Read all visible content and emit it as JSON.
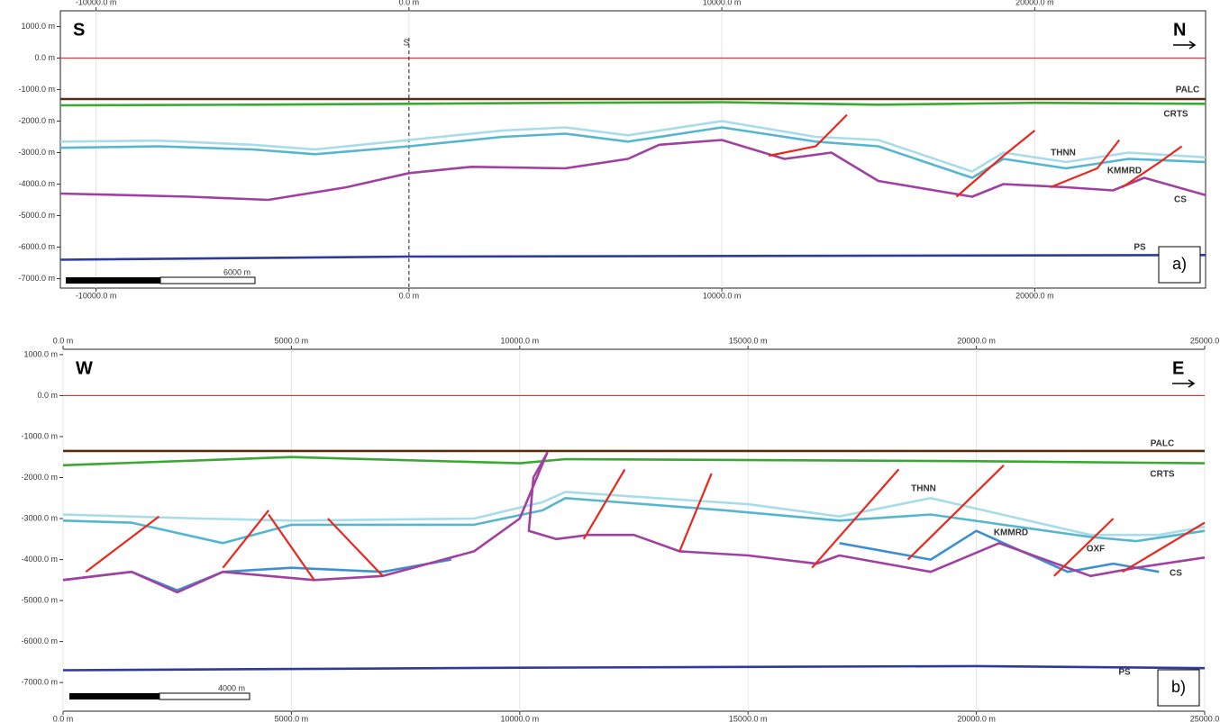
{
  "chart_data": [
    {
      "type": "line",
      "left_label": "S",
      "right_label": "N",
      "panel_label": "a)",
      "marker_label": "S",
      "scale_label": "6000 m",
      "grid": true,
      "fault_color": "#e8281e",
      "xlim": [
        -11140,
        25460
      ],
      "ylim": [
        -7300,
        1500
      ],
      "xticks": [
        {
          "value": -10000,
          "label": "-10000.0 m"
        },
        {
          "value": 0,
          "label": "0.0 m"
        },
        {
          "value": 10000,
          "label": "10000.0 m"
        },
        {
          "value": 20000,
          "label": "20000.0 m"
        }
      ],
      "yticks": [
        {
          "value": 1000,
          "label": "1000.0 m"
        },
        {
          "value": 0,
          "label": "0.0 m"
        },
        {
          "value": -1000,
          "label": "-1000.0 m"
        },
        {
          "value": -2000,
          "label": "-2000.0 m"
        },
        {
          "value": -3000,
          "label": "-3000.0 m"
        },
        {
          "value": -4000,
          "label": "-4000.0 m"
        },
        {
          "value": -5000,
          "label": "-5000.0 m"
        },
        {
          "value": -6000,
          "label": "-6000.0 m"
        },
        {
          "value": -7000,
          "label": "-7000.0 m"
        }
      ],
      "series": [
        {
          "name": "PALC",
          "color": "#5a2d0c",
          "x": [
            -11140,
            25460
          ],
          "y": [
            -1300,
            -1300
          ]
        },
        {
          "name": "CRTS",
          "color": "#3aa832",
          "x": [
            -11140,
            -5000,
            0,
            5000,
            10000,
            15000,
            20000,
            25460
          ],
          "y": [
            -1500,
            -1480,
            -1450,
            -1420,
            -1400,
            -1480,
            -1420,
            -1450
          ]
        },
        {
          "name": "THNN",
          "color": "#a8dce8",
          "x": [
            -11140,
            -8000,
            -5000,
            -3000,
            0,
            3000,
            5000,
            7000,
            10000,
            13000,
            15000,
            18000,
            19000,
            21000,
            23000,
            25460
          ],
          "y": [
            -2650,
            -2620,
            -2750,
            -2900,
            -2600,
            -2300,
            -2200,
            -2450,
            -2000,
            -2500,
            -2600,
            -3600,
            -3000,
            -3300,
            -3000,
            -3150
          ]
        },
        {
          "name": "KMMRD",
          "color": "#55b6d0",
          "x": [
            -11140,
            -8000,
            -5000,
            -3000,
            0,
            3000,
            5000,
            7000,
            10000,
            13000,
            15000,
            18000,
            19000,
            21000,
            23000,
            25460
          ],
          "y": [
            -2850,
            -2800,
            -2900,
            -3050,
            -2800,
            -2500,
            -2400,
            -2650,
            -2200,
            -2650,
            -2800,
            -3800,
            -3200,
            -3500,
            -3200,
            -3300
          ]
        },
        {
          "name": "CS",
          "color": "#a040a0",
          "x": [
            -11140,
            -7000,
            -4500,
            -2000,
            0,
            2000,
            5000,
            7000,
            8000,
            10000,
            12000,
            13500,
            15000,
            18000,
            19000,
            21000,
            22500,
            23500,
            25460
          ],
          "y": [
            -4300,
            -4400,
            -4500,
            -4100,
            -3650,
            -3450,
            -3500,
            -3200,
            -2750,
            -2600,
            -3200,
            -3000,
            -3900,
            -4400,
            -4000,
            -4100,
            -4200,
            -3800,
            -4350
          ]
        },
        {
          "name": "PS",
          "color": "#2e3a9e",
          "x": [
            -11140,
            0,
            25460
          ],
          "y": [
            -6400,
            -6300,
            -6250
          ]
        }
      ],
      "faults": [
        {
          "x": [
            11500,
            13000,
            14000
          ],
          "y": [
            -3100,
            -2800,
            -1800
          ]
        },
        {
          "x": [
            17500,
            19000,
            20000
          ],
          "y": [
            -4400,
            -3100,
            -2300
          ]
        },
        {
          "x": [
            20500,
            22000,
            22700
          ],
          "y": [
            -4100,
            -3500,
            -2600
          ]
        },
        {
          "x": [
            22800,
            24000,
            24700
          ],
          "y": [
            -4100,
            -3300,
            -2800
          ]
        }
      ]
    },
    {
      "type": "line",
      "left_label": "W",
      "right_label": "E",
      "panel_label": "b)",
      "scale_label": "4000 m",
      "grid": true,
      "fault_color": "#e8281e",
      "xlim": [
        0,
        25000
      ],
      "ylim": [
        -7700,
        1130
      ],
      "xticks": [
        {
          "value": 0,
          "label": "0.0 m"
        },
        {
          "value": 5000,
          "label": "5000.0 m"
        },
        {
          "value": 10000,
          "label": "10000.0 m"
        },
        {
          "value": 15000,
          "label": "15000.0 m"
        },
        {
          "value": 20000,
          "label": "20000.0 m"
        },
        {
          "value": 25000,
          "label": "25000.0"
        }
      ],
      "yticks": [
        {
          "value": 1000,
          "label": "1000.0 m"
        },
        {
          "value": 0,
          "label": "0.0 m"
        },
        {
          "value": -1000,
          "label": "-1000.0 m"
        },
        {
          "value": -2000,
          "label": "-2000.0 m"
        },
        {
          "value": -3000,
          "label": "-3000.0 m"
        },
        {
          "value": -4000,
          "label": "-4000.0 m"
        },
        {
          "value": -5000,
          "label": "-5000.0 m"
        },
        {
          "value": -6000,
          "label": "-6000.0 m"
        },
        {
          "value": -7000,
          "label": "-7000.0 m"
        }
      ],
      "series": [
        {
          "name": "PALC",
          "color": "#5a2d0c",
          "x": [
            0,
            25000
          ],
          "y": [
            -1350,
            -1350
          ]
        },
        {
          "name": "CRTS",
          "color": "#3aa832",
          "x": [
            0,
            5000,
            10000,
            11000,
            20000,
            25000
          ],
          "y": [
            -1700,
            -1500,
            -1650,
            -1550,
            -1600,
            -1650
          ]
        },
        {
          "name": "THNN",
          "color": "#a8dce8",
          "x": [
            0,
            3000,
            5000,
            9000,
            10500,
            11000,
            15000,
            17000,
            19000,
            22500,
            24000,
            25000
          ],
          "y": [
            -2900,
            -3000,
            -3050,
            -3000,
            -2600,
            -2350,
            -2650,
            -2950,
            -2500,
            -3400,
            -3400,
            -3200
          ]
        },
        {
          "name": "KMMRD",
          "color": "#55b6d0",
          "x": [
            0,
            1500,
            3500,
            5000,
            9000,
            10500,
            11000,
            14500,
            17000,
            19000,
            22500,
            23500,
            25000
          ],
          "y": [
            -3050,
            -3100,
            -3600,
            -3150,
            -3150,
            -2800,
            -2500,
            -2800,
            -3050,
            -2900,
            -3450,
            -3550,
            -3300
          ]
        },
        {
          "name": "OXF",
          "color": "#3d8fd0",
          "x": [
            0,
            1500,
            2500,
            3500,
            5000,
            7000,
            8500,
            null,
            17000,
            19000,
            20000,
            22000,
            23000,
            24000
          ],
          "y": [
            -4500,
            -4300,
            -4750,
            -4300,
            -4200,
            -4300,
            -4000,
            null,
            -3600,
            -4000,
            -3300,
            -4300,
            -4100,
            -4300
          ]
        },
        {
          "name": "CS",
          "color": "#a040a0",
          "x": [
            0,
            1500,
            2500,
            3500,
            5500,
            7000,
            9000,
            10000,
            10600,
            10300,
            10200,
            10800,
            11500,
            12500,
            13500,
            15000,
            16500,
            17000,
            19000,
            20500,
            22500,
            23500,
            25000
          ],
          "y": [
            -4500,
            -4300,
            -4800,
            -4300,
            -4500,
            -4400,
            -3800,
            -3000,
            -1400,
            -2000,
            -3300,
            -3500,
            -3400,
            -3400,
            -3800,
            -3900,
            -4100,
            -3900,
            -4300,
            -3600,
            -4400,
            -4200,
            -3950
          ]
        },
        {
          "name": "PS",
          "color": "#2e3a9e",
          "x": [
            0,
            10000,
            20000,
            25000
          ],
          "y": [
            -6700,
            -6640,
            -6600,
            -6650
          ]
        }
      ],
      "faults": [
        {
          "x": [
            500,
            2100
          ],
          "y": [
            -4300,
            -2950
          ]
        },
        {
          "x": [
            3500,
            4500
          ],
          "y": [
            -4200,
            -2800
          ]
        },
        {
          "x": [
            4500,
            5500
          ],
          "y": [
            -2900,
            -4500
          ]
        },
        {
          "x": [
            5800,
            7000
          ],
          "y": [
            -3000,
            -4400
          ]
        },
        {
          "x": [
            11400,
            12300
          ],
          "y": [
            -3500,
            -1800
          ]
        },
        {
          "x": [
            13500,
            14200
          ],
          "y": [
            -3800,
            -1900
          ]
        },
        {
          "x": [
            16400,
            18300
          ],
          "y": [
            -4200,
            -1800
          ]
        },
        {
          "x": [
            18500,
            20600
          ],
          "y": [
            -4000,
            -1700
          ]
        },
        {
          "x": [
            21700,
            23000
          ],
          "y": [
            -4400,
            -3000
          ]
        },
        {
          "x": [
            23200,
            25000
          ],
          "y": [
            -4300,
            -3100
          ]
        }
      ]
    }
  ]
}
